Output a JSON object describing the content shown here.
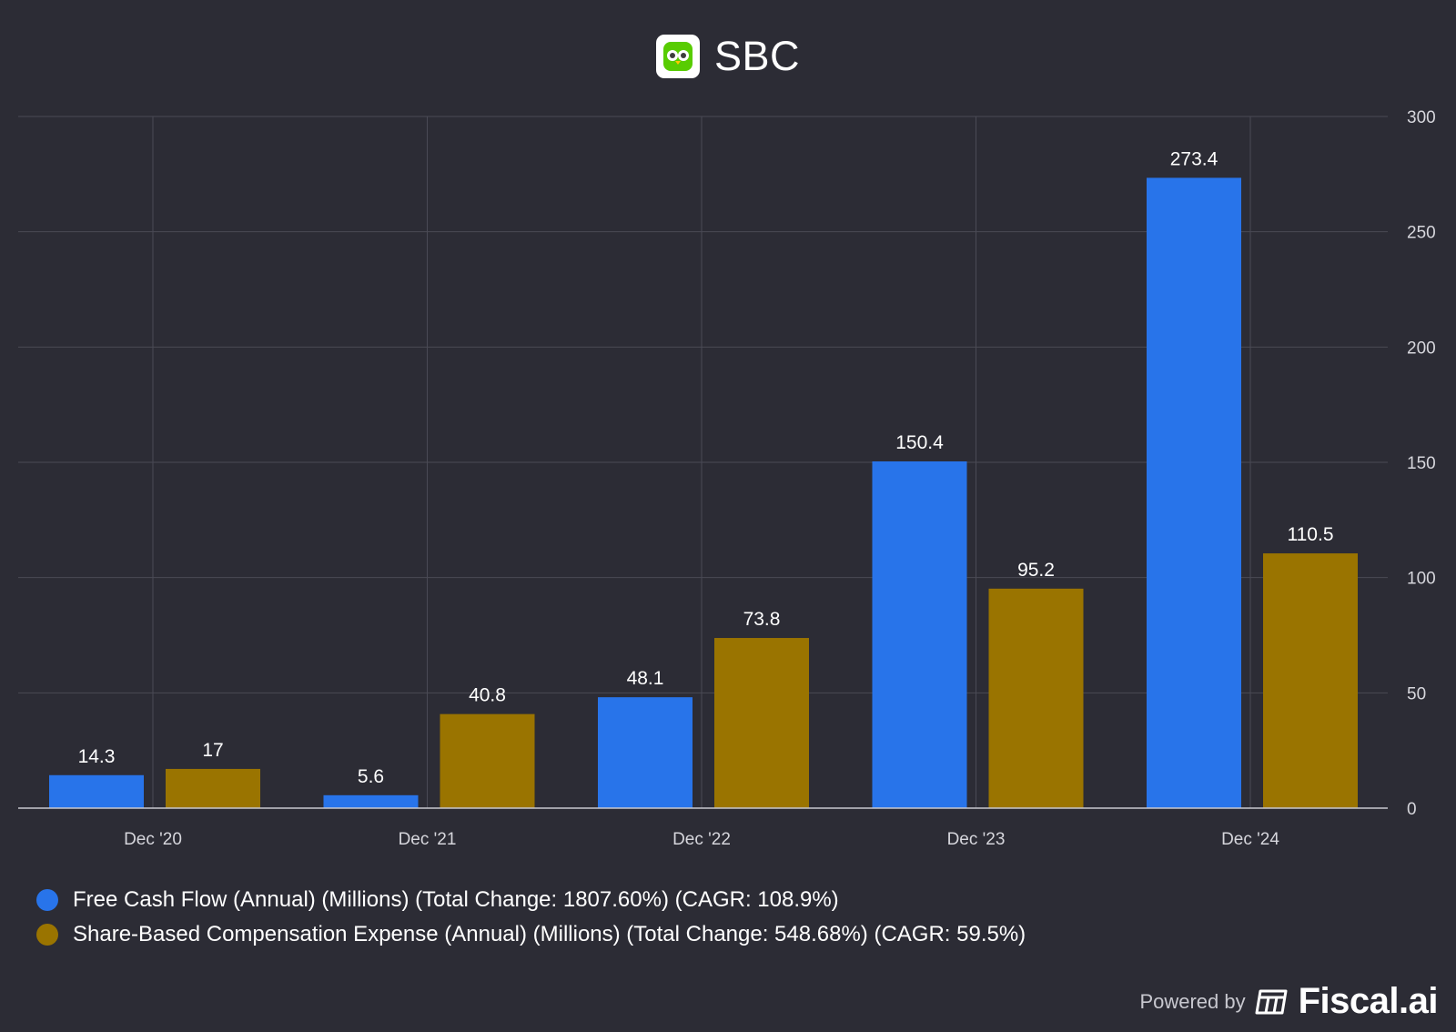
{
  "header": {
    "title": "SBC",
    "logo_icon": "duolingo-owl-icon"
  },
  "chart_data": {
    "type": "bar",
    "title": "SBC",
    "categories": [
      "Dec '20",
      "Dec '21",
      "Dec '22",
      "Dec '23",
      "Dec '24"
    ],
    "series": [
      {
        "name": "Free Cash Flow (Annual) (Millions) (Total Change: 1807.60%) (CAGR: 108.9%)",
        "color": "#2874ea",
        "values": [
          14.3,
          5.6,
          48.1,
          150.4,
          273.4
        ],
        "labels": [
          "14.3",
          "5.6",
          "48.1",
          "150.4",
          "273.4"
        ]
      },
      {
        "name": "Share-Based Compensation Expense (Annual) (Millions) (Total Change: 548.68%) (CAGR: 59.5%)",
        "color": "#9a7400",
        "values": [
          17,
          40.8,
          73.8,
          95.2,
          110.5
        ],
        "labels": [
          "17",
          "40.8",
          "73.8",
          "95.2",
          "110.5"
        ]
      }
    ],
    "ylim": [
      0,
      300
    ],
    "yticks": [
      0,
      50,
      100,
      150,
      200,
      250,
      300
    ],
    "ytick_labels": [
      "0",
      "50",
      "100",
      "150",
      "200",
      "250",
      "300"
    ],
    "y_axis_side": "right",
    "grid": true,
    "legend_position": "bottom-left",
    "xlabel": "",
    "ylabel": ""
  },
  "footer": {
    "powered_by": "Powered by",
    "brand": "Fiscal.ai"
  }
}
